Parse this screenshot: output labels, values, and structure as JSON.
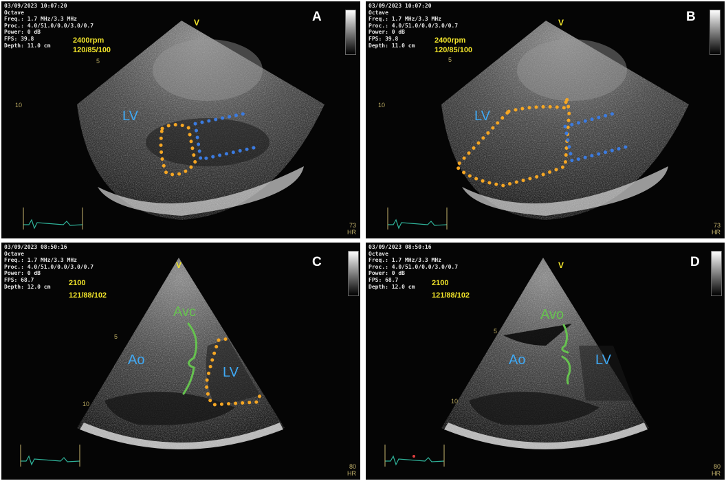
{
  "panels": {
    "a": {
      "timestamp": "03/09/2023 10:07:20",
      "preset": "Octave",
      "freq": "Freq.: 1.7 MHz/3.3 MHz",
      "proc": "Proc.: 4.0/51.0/0.0/3.0/0.7",
      "power": "Power: 0 dB",
      "fps": "FPS: 39.8",
      "depth": "Depth: 11.0 cm",
      "letter": "A",
      "speed": "2400rpm",
      "pressure": "120/85/100",
      "v_marker": "V",
      "depth_tick_5": "5",
      "depth_tick_10": "10",
      "hr_value": "73",
      "hr_unit": "HR",
      "labels": {
        "lv": "LV"
      }
    },
    "b": {
      "timestamp": "03/09/2023 10:07:20",
      "preset": "Octave",
      "freq": "Freq.: 1.7 MHz/3.3 MHz",
      "proc": "Proc.: 4.0/51.0/0.0/3.0/0.7",
      "power": "Power: 0 dB",
      "fps": "FPS: 39.8",
      "depth": "Depth: 11.0 cm",
      "letter": "B",
      "speed": "2400rpm",
      "pressure": "120/85/100",
      "v_marker": "V",
      "depth_tick_5": "5",
      "depth_tick_10": "10",
      "hr_value": "73",
      "hr_unit": "HR",
      "labels": {
        "lv": "LV"
      }
    },
    "c": {
      "timestamp": "03/09/2023 08:50:16",
      "preset": "Octave",
      "freq": "Freq.: 1.7 MHz/3.3 MHz",
      "proc": "Proc.: 4.0/51.0/0.0/3.0/0.7",
      "power": "Power: 0 dB",
      "fps": "FPS: 68.7",
      "depth": "Depth: 12.0 cm",
      "letter": "C",
      "speed": "2100",
      "pressure": "121/88/102",
      "v_marker": "V",
      "depth_tick_5": "5",
      "depth_tick_10": "10",
      "hr_value": "80",
      "hr_unit": "HR",
      "labels": {
        "ao": "Ao",
        "lv": "LV",
        "valve": "Avc"
      }
    },
    "d": {
      "timestamp": "03/09/2023 08:50:16",
      "preset": "Octave",
      "freq": "Freq.: 1.7 MHz/3.3 MHz",
      "proc": "Proc.: 4.0/51.0/0.0/3.0/0.7",
      "power": "Power: 0 dB",
      "fps": "FPS: 68.7",
      "depth": "Depth: 12.0 cm",
      "letter": "D",
      "speed": "2100",
      "pressure": "121/88/102",
      "v_marker": "V",
      "depth_tick_5": "5",
      "depth_tick_10": "10",
      "hr_value": "80",
      "hr_unit": "HR",
      "labels": {
        "ao": "Ao",
        "lv": "LV",
        "valve": "Avo"
      }
    }
  },
  "colors": {
    "overlay_text": "#f2e52a",
    "label_blue": "#3fa9f5",
    "label_green": "#66c24f",
    "outline_orange": "#f5a623",
    "outline_blue": "#3b7be0",
    "ecg_trace": "#2fb39a"
  }
}
